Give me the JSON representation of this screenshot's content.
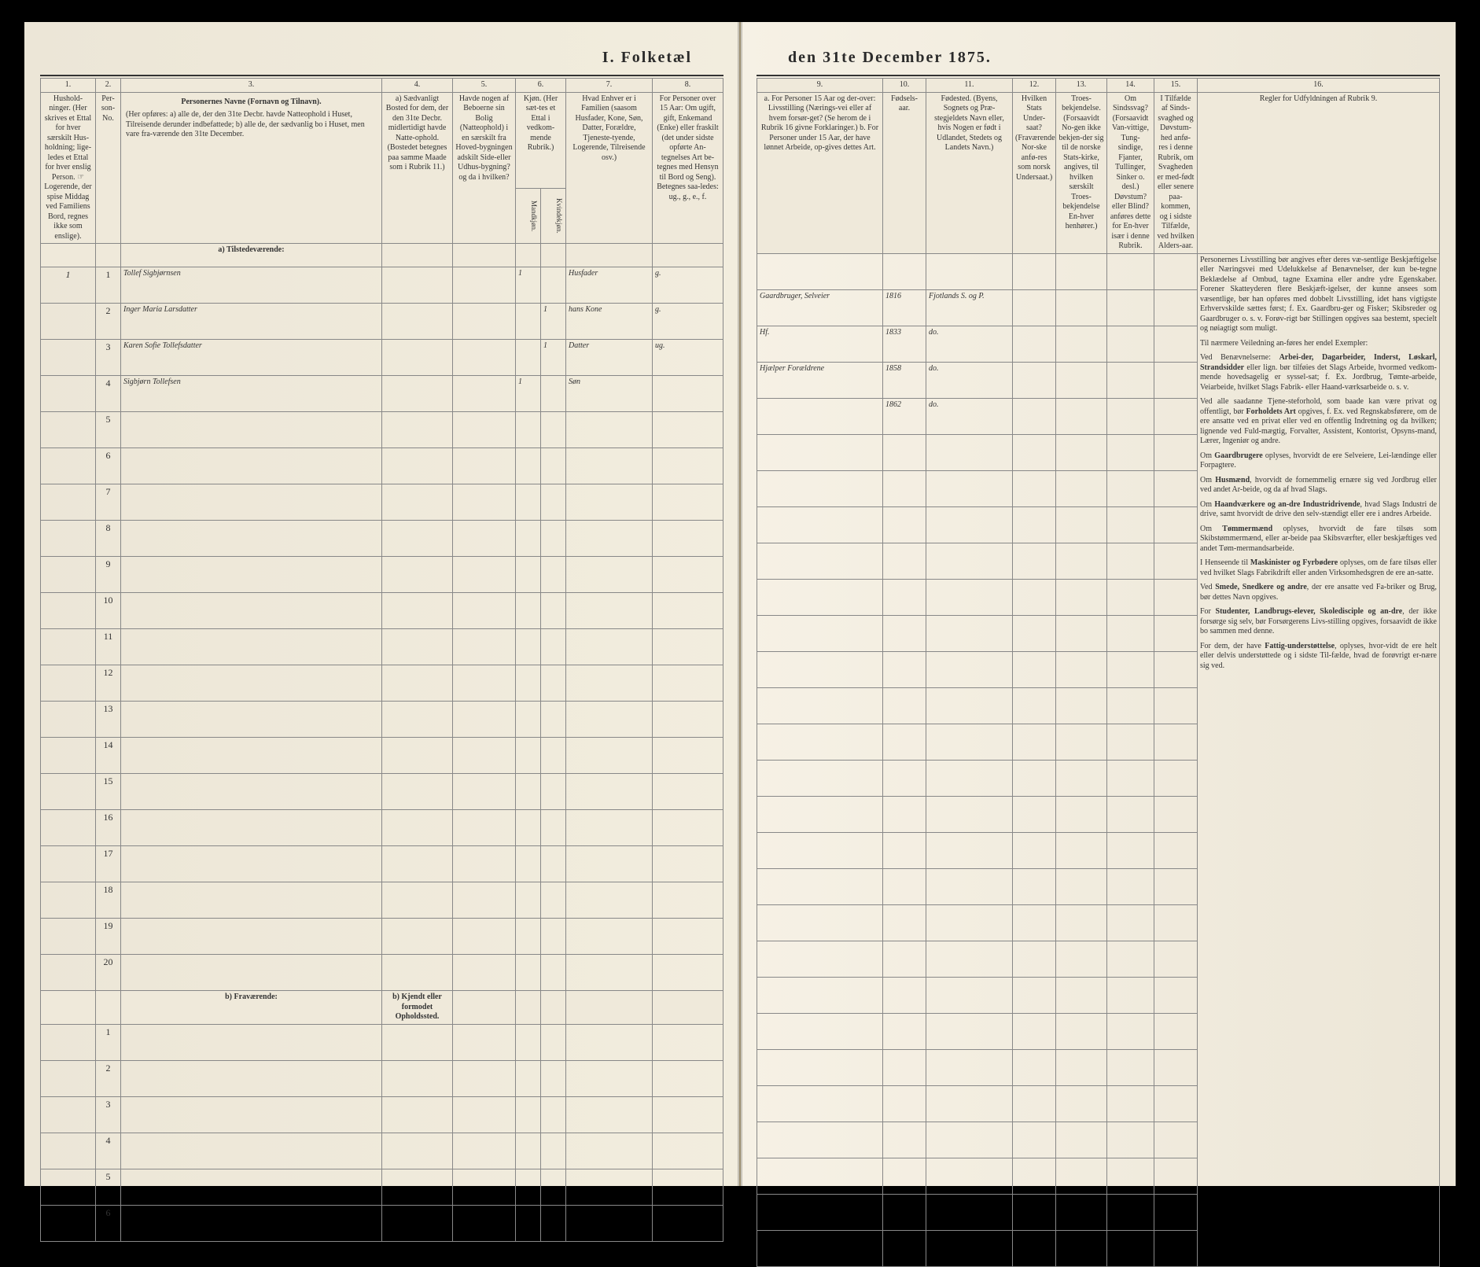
{
  "title_left": "I.  Folketæl",
  "title_right": "den 31te December 1875.",
  "left": {
    "colnums": [
      "1.",
      "2.",
      "3.",
      "4.",
      "5.",
      "6.",
      "7.",
      "8."
    ],
    "headers": {
      "c1": "Hushold-\nninger.\n(Her skrives et Ettal for hver særskilt Hus-holdning; lige-ledes et Ettal for hver enslig Person.\n☞ Logerende, der spise Middag ved Familiens Bord, regnes ikke som enslige).",
      "c2": "Per-son-No.",
      "c3_title": "Personernes Navne (Fornavn og Tilnavn).",
      "c3_body": "(Her opføres:\na) alle de, der den 31te Decbr. havde Natteophold i Huset, Tilreisende derunder indbefattede;\nb) alle de, der sædvanlig bo i Huset, men vare fra-værende den 31te December.",
      "c4": "a) Sædvanligt Bosted for dem, der den 31te Decbr. midlertidigt havde Natte-ophold. (Bostedet betegnes paa samme Maade som i Rubrik 11.)",
      "c5": "Havde nogen af Beboerne sin Bolig (Natteophold) i en særskilt fra Hoved-bygningen adskilt Side-eller Udhus-bygning? og da i hvilken?",
      "c6": "Kjøn.\n(Her sæt-tes et Ettal i vedkom-mende Rubrik.)",
      "c6a": "Mandkjøn.",
      "c6b": "Kvindekjøn.",
      "c7": "Hvad Enhver er i Familien\n(saasom Husfader, Kone, Søn, Datter, Forældre, Tjeneste-tyende, Logerende, Tilreisende osv.)",
      "c8": "For Personer over 15 Aar:\nOm ugift, gift, Enkemand (Enke) eller fraskilt (det under sidste opførte An-tegnelses Art be-tegnes med Hensyn til Bord og Seng).\nBetegnes saa-ledes:\nug., g., e., f."
    },
    "section_a": "a) Tilstedeværende:",
    "section_b_label": "b) Fraværende:",
    "section_b_col4": "b) Kjendt eller formodet Opholdssted.",
    "rows": [
      {
        "hus": "1",
        "no": "1",
        "name": "Tollef Sigbjørnsen",
        "c4": "",
        "c5": "",
        "m": "1",
        "k": "",
        "fam": "Husfader",
        "civ": "g."
      },
      {
        "hus": "",
        "no": "2",
        "name": "Inger Maria Larsdatter",
        "c4": "",
        "c5": "",
        "m": "",
        "k": "1",
        "fam": "hans Kone",
        "civ": "g."
      },
      {
        "hus": "",
        "no": "3",
        "name": "Karen Sofie Tollefsdatter",
        "c4": "",
        "c5": "",
        "m": "",
        "k": "1",
        "fam": "Datter",
        "civ": "ug."
      },
      {
        "hus": "",
        "no": "4",
        "name": "Sigbjørn Tollefsen",
        "c4": "",
        "c5": "",
        "m": "1",
        "k": "",
        "fam": "Søn",
        "civ": ""
      }
    ],
    "empty_a": [
      "5",
      "6",
      "7",
      "8",
      "9",
      "10",
      "11",
      "12",
      "13",
      "14",
      "15",
      "16",
      "17",
      "18",
      "19",
      "20"
    ],
    "empty_b": [
      "1",
      "2",
      "3",
      "4",
      "5",
      "6"
    ]
  },
  "right": {
    "colnums": [
      "9.",
      "10.",
      "11.",
      "12.",
      "13.",
      "14.",
      "15.",
      "16."
    ],
    "headers": {
      "c9": "a. For Personer 15 Aar og der-over: Livsstilling (Nærings-vei eller af hvem forsør-get? (Se herom de i Rubrik 16 givne Forklaringer.)\nb. For Personer under 15 Aar, der have lønnet Arbeide, op-gives dettes Art.",
      "c10": "Fødsels-aar.",
      "c11": "Fødested.\n(Byens, Sognets og Præ-stegjeldets Navn eller, hvis Nogen er født i Udlandet, Stedets og Landets Navn.)",
      "c12": "Hvilken Stats Under-saat?\n(Fraværende Nor-ske anfø-res som norsk Undersaat.)",
      "c13": "Troes-bekjendelse.\n(Forsaavidt No-gen ikke bekjen-der sig til de norske Stats-kirke, angives, til hvilken særskilt Troes-bekjendelse En-hver henhører.)",
      "c14": "Om Sindssvag?\n(Forsaavidt Van-vittige, Tung-sindige, Fjanter, Tullinger, Sinker o. desl.)\nDøvstum? eller Blind? anføres dette for En-hver især i denne Rubrik.",
      "c15": "I Tilfælde af Sinds-svaghed og Døvstum-hed anfø-res i denne Rubrik, om Svagheden er med-født eller senere paa-kommen, og i sidste Tilfælde, ved hvilken Alders-aar.",
      "c16": "Regler for Udfyldningen\naf\nRubrik 9."
    },
    "rows": [
      {
        "c9": "Gaardbruger, Selveier",
        "c10": "1816",
        "c11": "Fjotlands S. og P.",
        "c12": "",
        "c13": "",
        "c14": "",
        "c15": ""
      },
      {
        "c9": "Hf.",
        "c10": "1833",
        "c11": "do.",
        "c12": "",
        "c13": "",
        "c14": "",
        "c15": ""
      },
      {
        "c9": "Hjælper Forældrene",
        "c10": "1858",
        "c11": "do.",
        "c12": "",
        "c13": "",
        "c14": "",
        "c15": ""
      },
      {
        "c9": "",
        "c10": "1862",
        "c11": "do.",
        "c12": "",
        "c13": "",
        "c14": "",
        "c15": ""
      }
    ],
    "rules_paragraphs": [
      "Personernes Livsstilling bør angives efter deres væ-sentlige Beskjæftigelse eller Næringsvei med Udelukkelse af Benævnelser, der kun be-tegne Beklædelse af Ombud, tagne Examina eller andre ydre Egenskaber. Forener Skatteyderen flere Beskjæft-igelser, der kunne ansees som væsentlige, bør han opføres med dobbelt Livsstilling, idet hans vigtigste Erhvervskilde sættes først; f. Ex. Gaardbru-ger og Fisker; Skibsreder og Gaardbruger o. s. v. Forøv-rigt bør Stillingen opgives saa bestemt, specielt og nøiagtigt som muligt.",
      "Til nærmere Veiledning an-føres her endel Exempler:",
      "Ved Benævnelserne: <b>Arbei-der, Dagarbeider, Inderst, Løskarl, Strandsidder</b> eller lign. bør tilføies det Slags Arbeide, hvormed vedkom-mende hovedsagelig er syssel-sat; f. Ex. Jordbrug, Tømte-arbeide, Veiarbeide, hvilket Slags Fabrik- eller Haand-værksarbeide o. s. v.",
      "Ved alle saadanne Tjene-steforhold, som baade kan være privat og offentligt, bør <b>Forholdets Art</b> opgives, f. Ex. ved Regnskabsførere, om de ere ansatte ved en privat eller ved en offentlig Indretning og da hvilken; lignende ved Fuld-mægtig, Forvalter, Assistent, Kontorist, Opsyns-mand, Lærer, Ingeniør og andre.",
      "Om <b>Gaardbrugere</b> oplyses, hvorvidt de ere Selveiere, Lei-lændinge eller Forpagtere.",
      "Om <b>Husmænd</b>, hvorvidt de fornemmelig ernære sig ved Jordbrug eller ved andet Ar-beide, og da af hvad Slags.",
      "Om <b>Haandværkere og an-dre Industridrivende</b>, hvad Slags Industri de drive, samt hvorvidt de drive den selv-stændigt eller ere i andres Arbeide.",
      "Om <b>Tømmermænd</b> oplyses, hvorvidt de fare tilsøs som Skibstømmermænd, eller ar-beide paa Skibsværfter, eller beskjæftiges ved andet Tøm-mermandsarbeide.",
      "I Henseende til <b>Maskinister og Fyrbødere</b> oplyses, om de fare tilsøs eller ved hvilket Slags Fabrikdrift eller anden Virksomhedsgren de ere an-satte.",
      "Ved <b>Smede, Snedkere og andre</b>, der ere ansatte ved Fa-briker og Brug, bør dettes Navn opgives.",
      "For <b>Studenter, Landbrugs-elever, Skoledisciple og an-dre</b>, der ikke forsørge sig selv, bør Forsørgerens Livs-stilling opgives, forsaavidt de ikke bo sammen med denne.",
      "For dem, der have <b>Fattig-understøttelse</b>, oplyses, hvor-vidt de ere helt eller delvis understøttede og i sidste Til-fælde, hvad de forøvrigt er-nære sig ved."
    ]
  },
  "colors": {
    "paper": "#f4efe3",
    "ink": "#2a2a2a",
    "rule": "#888",
    "handwriting": "#2b2b45"
  }
}
